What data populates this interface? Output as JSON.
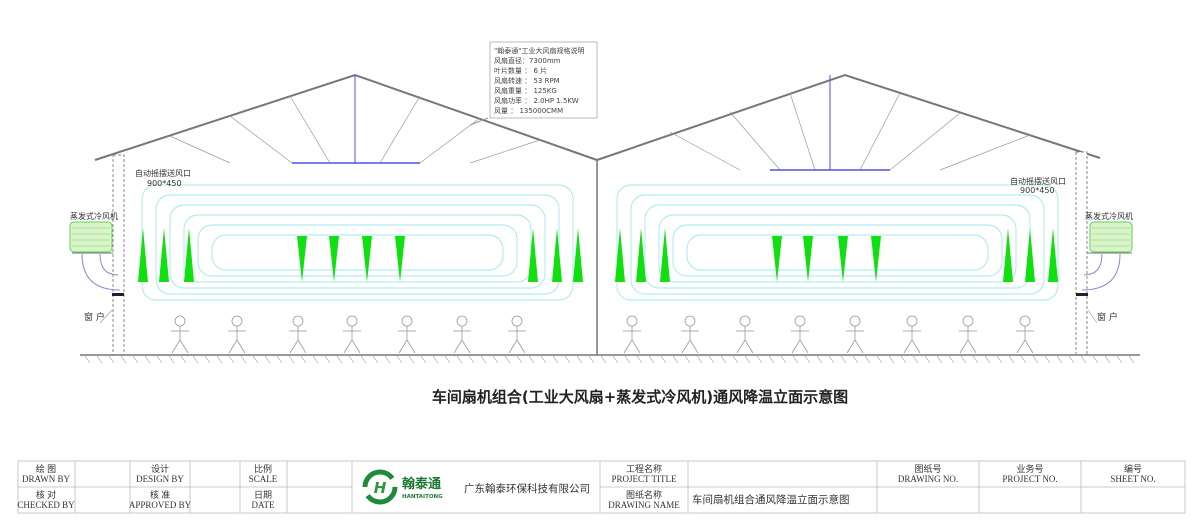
{
  "spec_box": {
    "lines": [
      "\"翰泰通\"工业大风扇规格说明",
      "风扇直径：7300mm",
      "叶片数量 ： 6 片",
      "风扇转速 ： 53 RPM",
      "风扇重量 ： 125KG",
      "风扇功率 ： 2.0HP 1.5KW",
      "风量     ： 135000CMM"
    ]
  },
  "labels": {
    "outlet_left": "自动摇摆送风口",
    "outlet_left_size": "900*450",
    "outlet_right": "自动摇摆送风口",
    "outlet_right_size": "900*450",
    "cooler_left": "蒸发式冷风机",
    "cooler_right": "蒸发式冷风机",
    "window_left": "窗 户",
    "window_right": "窗 户"
  },
  "title": "车间扇机组合(工业大风扇+蒸发式冷风机)通风降温立面示意图",
  "title_block": {
    "drawn_by": {
      "cn": "绘 图",
      "en": "DRAWN BY"
    },
    "checked_by": {
      "cn": "核 对",
      "en": "CHECKED BY"
    },
    "design_by": {
      "cn": "设计",
      "en": "DESIGN BY"
    },
    "approved_by": {
      "cn": "核 准",
      "en": "APPROVED BY"
    },
    "scale": {
      "cn": "比例",
      "en": "SCALE"
    },
    "date": {
      "cn": "日期",
      "en": "DATE"
    },
    "logo_cn": "翰泰通",
    "logo_en": "HANTAITONG",
    "company": "广东翰泰环保科技有限公司",
    "project_title": {
      "cn": "工程名称",
      "en": "PROJECT TITLE"
    },
    "drawing_name": {
      "cn": "图纸名称",
      "en": "DRAWING NAME"
    },
    "drawing_name_value": "车间扇机组合通风降温立面示意图",
    "drawing_no": {
      "cn": "图纸号",
      "en": "DRAWING NO."
    },
    "project_no": {
      "cn": "业务号",
      "en": "PROJECT NO."
    },
    "sheet_no": {
      "cn": "编号",
      "en": "SHEET NO."
    }
  },
  "colors": {
    "airflow": "#9fe8ec",
    "jet": "#10e010",
    "fan": "#5050e0",
    "logo": "#1f8a3a"
  }
}
